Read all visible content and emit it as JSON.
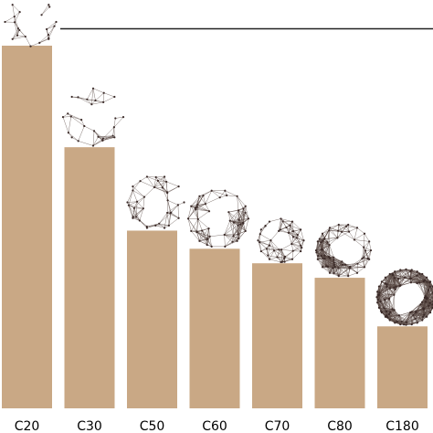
{
  "chart_data": {
    "type": "bar",
    "categories": [
      "C20",
      "C30",
      "C50",
      "C60",
      "C70",
      "C80",
      "C180"
    ],
    "values": [
      1.0,
      0.72,
      0.49,
      0.44,
      0.4,
      0.36,
      0.226
    ],
    "ylim": [
      0,
      1.0
    ],
    "title": "",
    "xlabel": "",
    "ylabel": "",
    "grid": false,
    "legend": "none",
    "reference_line": 1.0,
    "marker_icons": [
      "fullerene-cage",
      "fullerene-cage",
      "fullerene-cage",
      "fullerene-cage",
      "fullerene-cage",
      "fullerene-cage",
      "fullerene-cage"
    ],
    "colors": {
      "bar": "#c9a885",
      "line": "#222222",
      "mesh": "#5a4a44"
    }
  }
}
